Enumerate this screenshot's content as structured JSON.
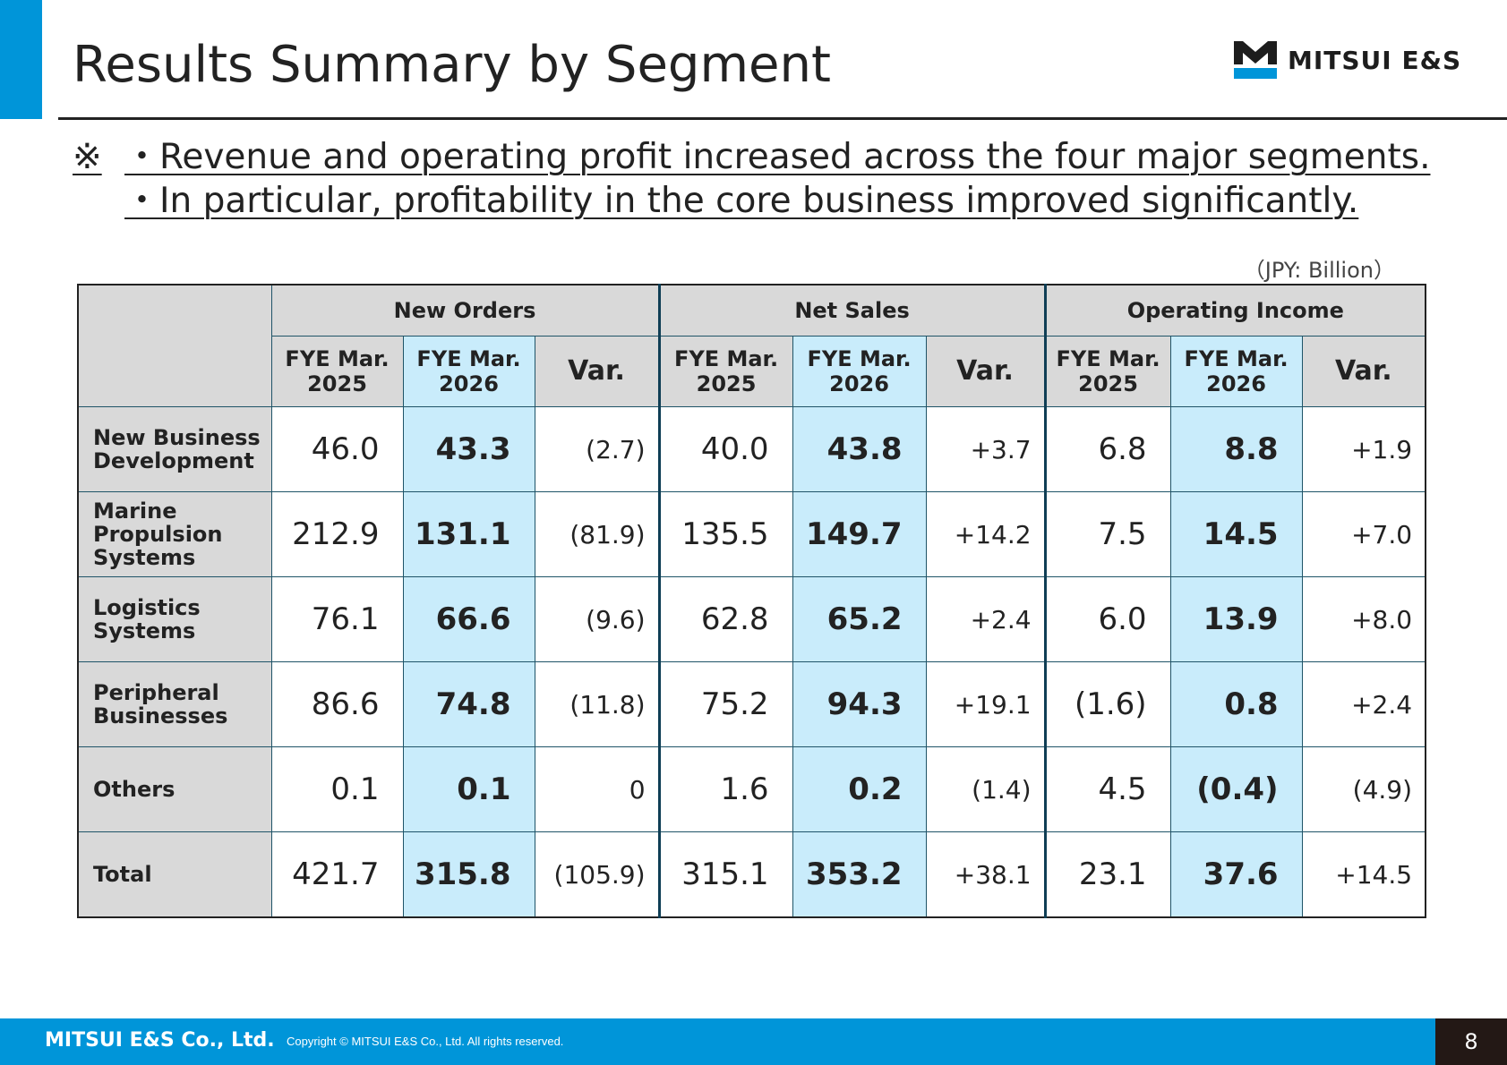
{
  "title": "Results Summary by Segment",
  "logo": {
    "name": "MITSUI E&S",
    "brand_color": "#0095d9"
  },
  "notes": {
    "mark": "※",
    "line1": "・Revenue and operating profit increased across the four major segments.",
    "line2": "・In particular, profitability in the core business improved significantly."
  },
  "unit": "（JPY: Billion）",
  "table": {
    "groups": [
      "New Orders",
      "Net Sales",
      "Operating Income"
    ],
    "col_prev": "FYE Mar. 2025",
    "col_curr": "FYE Mar. 2026",
    "col_var": "Var.",
    "rows": [
      {
        "label": "New Business Development",
        "values": [
          "46.0",
          "43.3",
          "(2.7)",
          "40.0",
          "43.8",
          "+3.7",
          "6.8",
          "8.8",
          "+1.9"
        ]
      },
      {
        "label": "Marine Propulsion Systems",
        "values": [
          "212.9",
          "131.1",
          "(81.9)",
          "135.5",
          "149.7",
          "+14.2",
          "7.5",
          "14.5",
          "+7.0"
        ]
      },
      {
        "label": "Logistics Systems",
        "values": [
          "76.1",
          "66.6",
          "(9.6)",
          "62.8",
          "65.2",
          "+2.4",
          "6.0",
          "13.9",
          "+8.0"
        ]
      },
      {
        "label": "Peripheral Businesses",
        "values": [
          "86.6",
          "74.8",
          "(11.8)",
          "75.2",
          "94.3",
          "+19.1",
          "(1.6)",
          "0.8",
          "+2.4"
        ]
      },
      {
        "label": "Others",
        "values": [
          "0.1",
          "0.1",
          "0",
          "1.6",
          "0.2",
          "(1.4)",
          "4.5",
          "(0.4)",
          "(4.9)"
        ]
      },
      {
        "label": "Total",
        "values": [
          "421.7",
          "315.8",
          "(105.9)",
          "315.1",
          "353.2",
          "+38.1",
          "23.1",
          "37.6",
          "+14.5"
        ]
      }
    ]
  },
  "footer": {
    "company": "MITSUI E&S Co., Ltd.",
    "copyright": "Copyright © MITSUI E&S Co., Ltd. All rights reserved.",
    "page_number": "8"
  }
}
